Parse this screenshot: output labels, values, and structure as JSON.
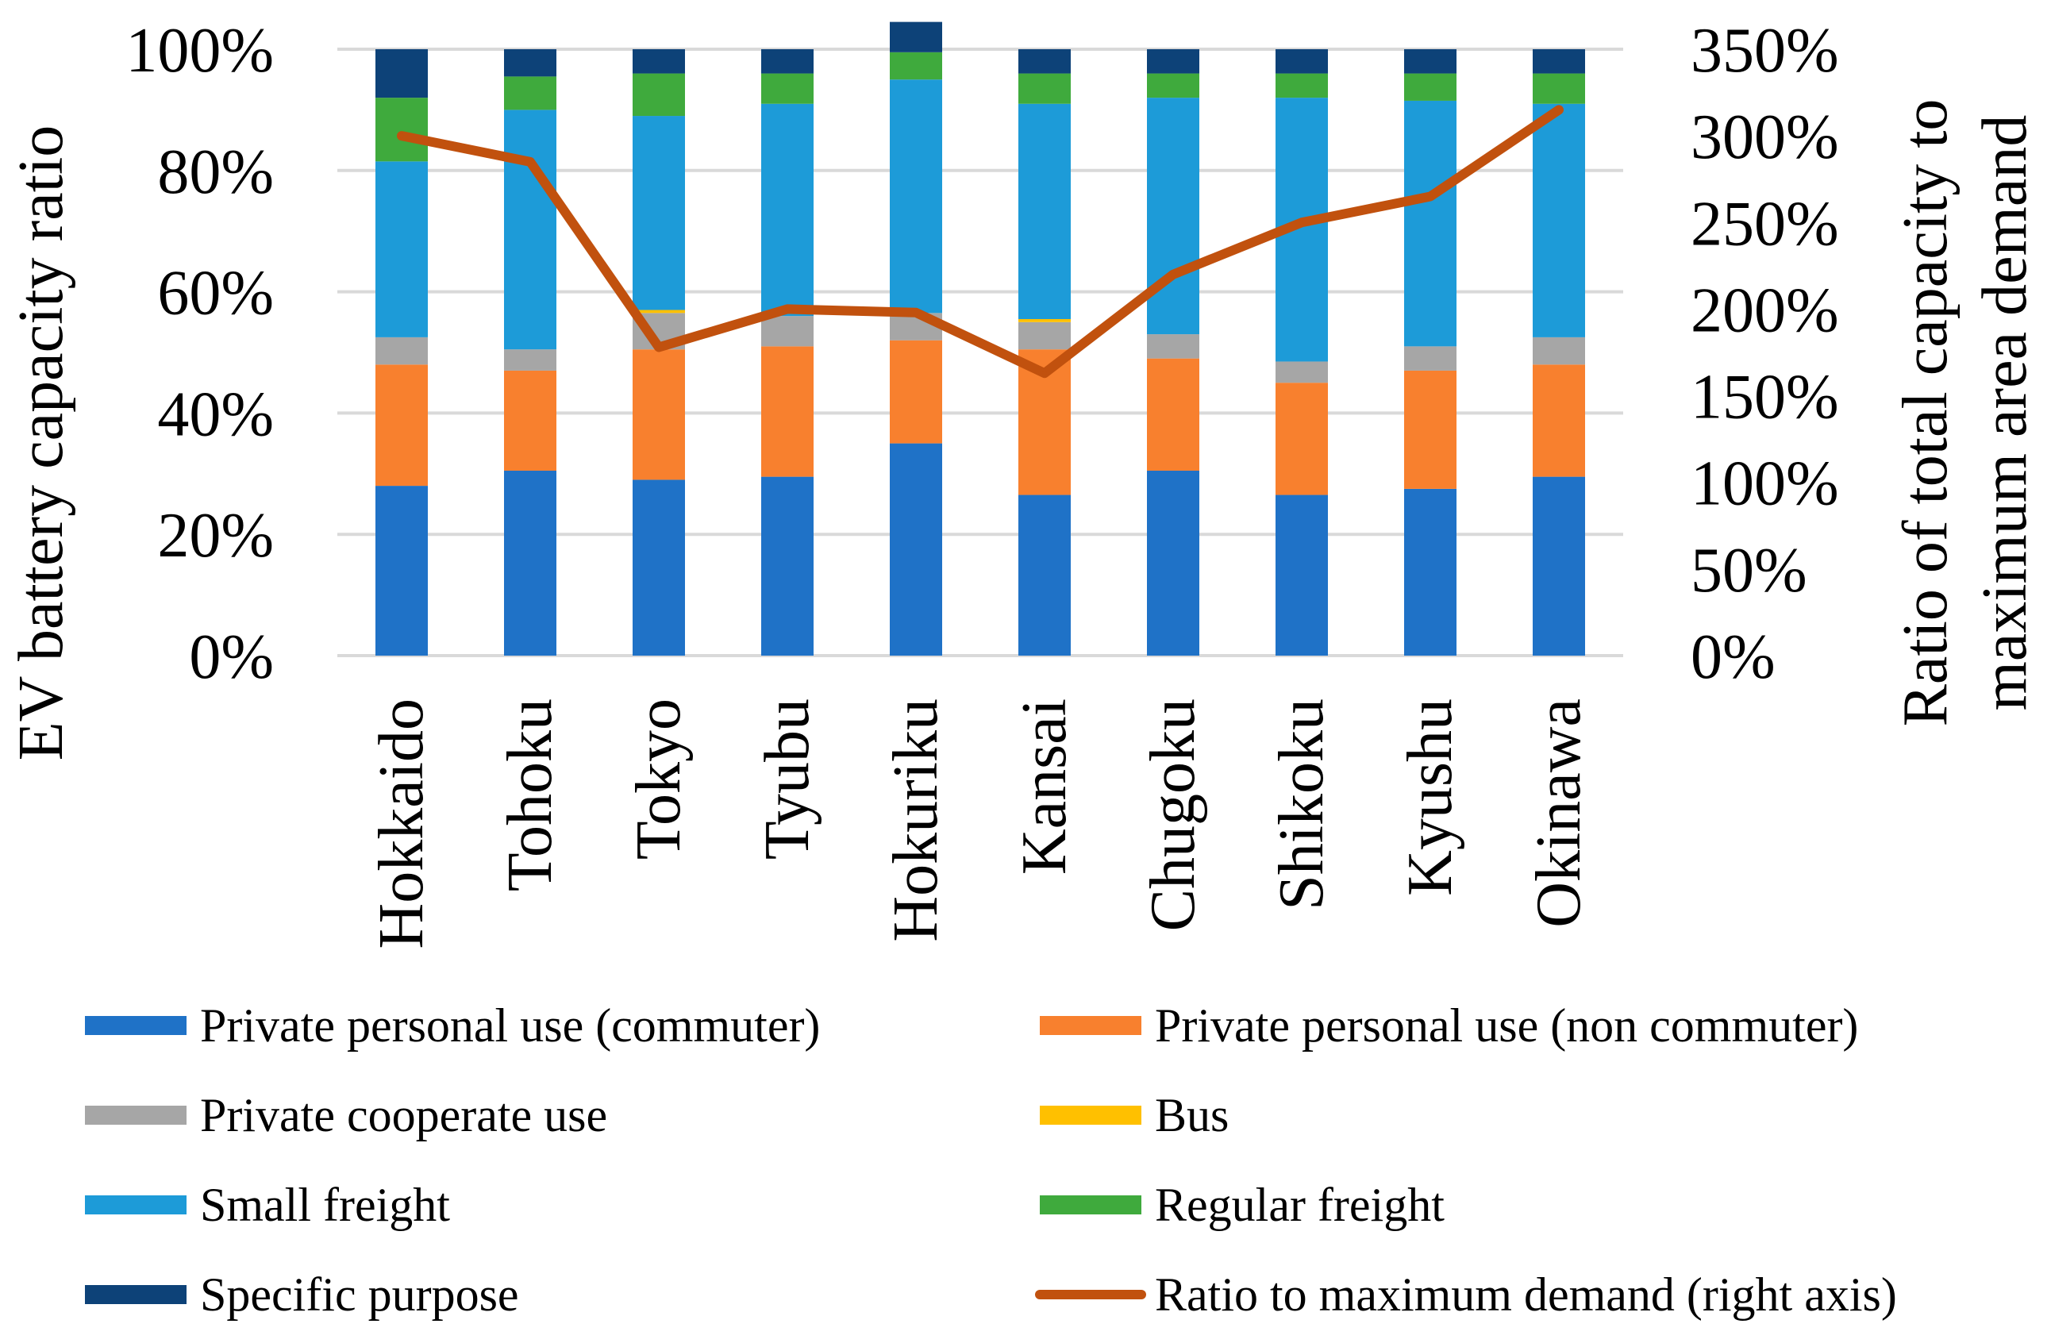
{
  "chart_data": {
    "type": "bar",
    "stacked": true,
    "categories": [
      "Hokkaido",
      "Tohoku",
      "Tokyo",
      "Tyubu",
      "Hokuriku",
      "Kansai",
      "Chugoku",
      "Shikoku",
      "Kyushu",
      "Okinawa"
    ],
    "series": [
      {
        "name": "Private personal use (commuter)",
        "color": "#1F72C7",
        "values": [
          28,
          30.5,
          29,
          29.5,
          35,
          26.5,
          30.5,
          26.5,
          27.5,
          29.5
        ]
      },
      {
        "name": "Private personal use (non commuter)",
        "color": "#F8802E",
        "values": [
          20,
          16.5,
          21.5,
          21.5,
          17,
          24,
          18.5,
          18.5,
          19.5,
          18.5
        ]
      },
      {
        "name": "Private cooperate use",
        "color": "#A6A6A6",
        "values": [
          4.5,
          3.5,
          6,
          5,
          4.5,
          4.5,
          4,
          3.5,
          4,
          4.5
        ]
      },
      {
        "name": "Bus",
        "color": "#FFC000",
        "values": [
          0,
          0,
          0.5,
          0,
          0,
          0.5,
          0,
          0,
          0,
          0
        ]
      },
      {
        "name": "Small freight",
        "color": "#1D9BD8",
        "values": [
          29,
          39.5,
          32,
          35,
          38.5,
          35.5,
          39,
          43.5,
          40.5,
          38.5
        ]
      },
      {
        "name": "Regular freight",
        "color": "#3FAA3D",
        "values": [
          10.5,
          5.5,
          7,
          5,
          4.5,
          5,
          4,
          4,
          4.5,
          5
        ]
      },
      {
        "name": "Specific purpose",
        "color": "#0D4278",
        "values": [
          8,
          4.5,
          4,
          4,
          5,
          4,
          4,
          4,
          4,
          4
        ]
      }
    ],
    "line_series": {
      "name": "Ratio to maximum demand (right axis)",
      "color": "#C1510E",
      "values": [
        300,
        285,
        178,
        200,
        198,
        163,
        220,
        250,
        265,
        315
      ]
    },
    "title": "",
    "xlabel": "",
    "ylabel": "EV battery capacity ratio",
    "y2label_lines": [
      "Ratio of total capacity to",
      "maximum  area demand"
    ],
    "ylim": [
      0,
      100
    ],
    "y2lim": [
      0,
      350
    ],
    "y_ticks": [
      "0%",
      "20%",
      "40%",
      "60%",
      "80%",
      "100%"
    ],
    "y2_ticks": [
      "0%",
      "50%",
      "100%",
      "150%",
      "200%",
      "250%",
      "300%",
      "350%"
    ],
    "grid": true,
    "legend_position": "bottom"
  }
}
